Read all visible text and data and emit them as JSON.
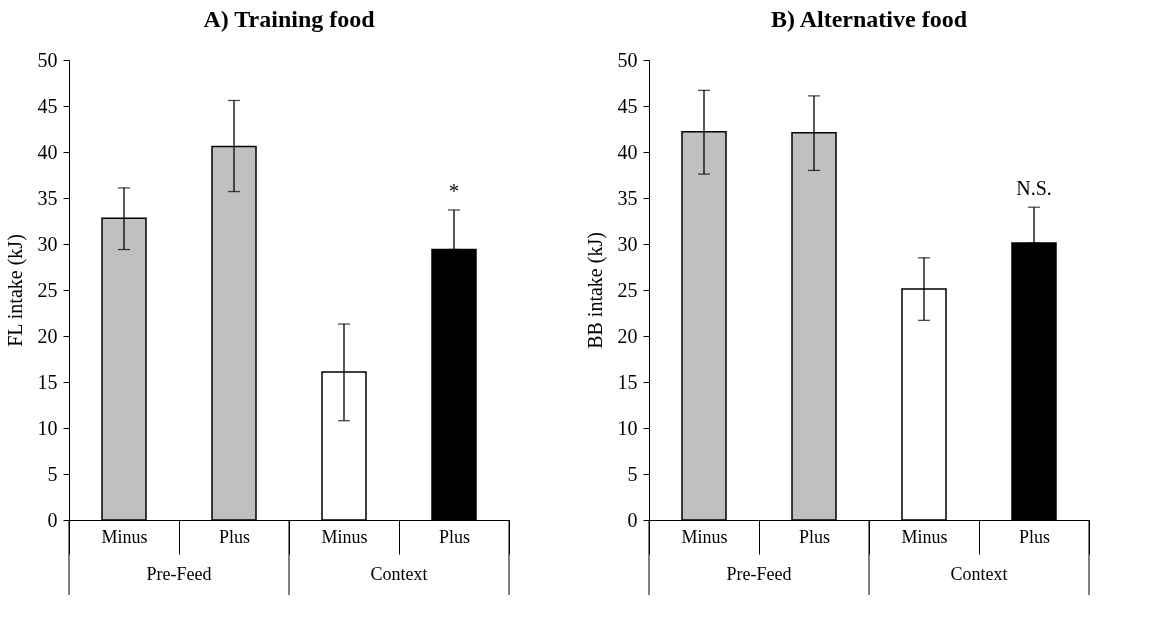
{
  "chart_data": [
    {
      "type": "bar",
      "title": "A) Training food",
      "ylabel": "FL intake (kJ)",
      "categories": [
        "Minus",
        "Plus",
        "Minus",
        "Plus"
      ],
      "values": [
        32.8,
        40.6,
        16.1,
        29.4
      ],
      "colors": [
        "#c0c0c0",
        "#c0c0c0",
        "#ffffff",
        "#000000"
      ],
      "errors": [
        [
          29.4,
          36.1
        ],
        [
          35.7,
          45.6
        ],
        [
          10.8,
          21.3
        ],
        [
          29.4,
          33.7
        ]
      ],
      "ylim": [
        0,
        50
      ],
      "yticks": [
        0,
        5,
        10,
        15,
        20,
        25,
        30,
        35,
        40,
        45,
        50
      ],
      "annotations": [
        "Pre-Feed",
        "Context",
        "*"
      ]
    },
    {
      "type": "bar",
      "title": "B) Alternative food",
      "ylabel": "BB intake (kJ)",
      "categories": [
        "Minus",
        "Plus",
        "Minus",
        "Plus"
      ],
      "values": [
        42.2,
        42.1,
        25.1,
        30.1
      ],
      "colors": [
        "#c0c0c0",
        "#c0c0c0",
        "#ffffff",
        "#000000"
      ],
      "errors": [
        [
          37.6,
          46.7
        ],
        [
          38.0,
          46.1
        ],
        [
          21.7,
          28.5
        ],
        [
          30.1,
          34.0
        ]
      ],
      "ylim": [
        0,
        50
      ],
      "yticks": [
        0,
        5,
        10,
        15,
        20,
        25,
        30,
        35,
        40,
        45,
        50
      ],
      "annotations": [
        "Pre-Feed",
        "Context",
        "N.S."
      ]
    }
  ]
}
